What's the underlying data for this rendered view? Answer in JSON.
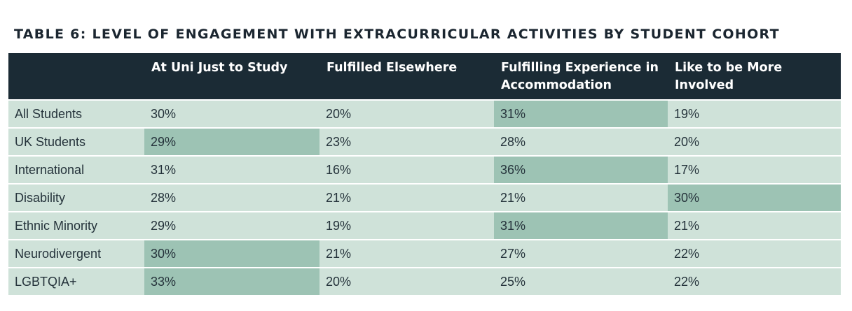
{
  "title": "TABLE 6: LEVEL OF ENGAGEMENT WITH EXTRACURRICULAR ACTIVITIES BY STUDENT COHORT",
  "columns": [
    "",
    "At Uni Just to Study",
    "Fulfilled Elsewhere",
    "Fulfilling Experience in Accommodation",
    "Like to be More Involved"
  ],
  "rows": [
    {
      "label": "All Students",
      "values": [
        "30%",
        "20%",
        "31%",
        "19%"
      ],
      "highlight": [
        false,
        false,
        true,
        false
      ]
    },
    {
      "label": "UK Students",
      "values": [
        "29%",
        "23%",
        "28%",
        "20%"
      ],
      "highlight": [
        true,
        false,
        false,
        false
      ]
    },
    {
      "label": "International",
      "values": [
        "31%",
        "16%",
        "36%",
        "17%"
      ],
      "highlight": [
        false,
        false,
        true,
        false
      ]
    },
    {
      "label": "Disability",
      "values": [
        "28%",
        "21%",
        "21%",
        "30%"
      ],
      "highlight": [
        false,
        false,
        false,
        true
      ]
    },
    {
      "label": "Ethnic Minority",
      "values": [
        "29%",
        "19%",
        "31%",
        "21%"
      ],
      "highlight": [
        false,
        false,
        true,
        false
      ]
    },
    {
      "label": "Neurodivergent",
      "values": [
        "30%",
        "21%",
        "27%",
        "22%"
      ],
      "highlight": [
        true,
        false,
        false,
        false
      ]
    },
    {
      "label": "LGBTQIA+",
      "values": [
        "33%",
        "20%",
        "25%",
        "22%"
      ],
      "highlight": [
        true,
        false,
        false,
        false
      ]
    }
  ],
  "colors": {
    "header_bg": "#1b2b35",
    "cell_bg": "#cfe2d9",
    "highlight_bg": "#9dc3b4",
    "text": "#25333b"
  }
}
